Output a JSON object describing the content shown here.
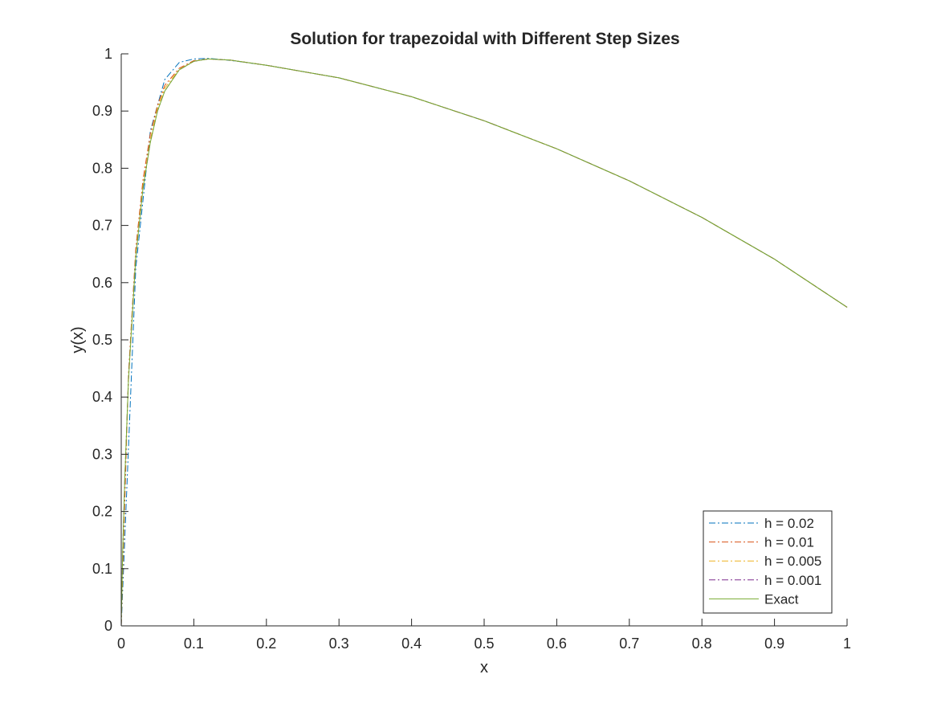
{
  "chart_data": {
    "type": "line",
    "title": "Solution for trapezoidal with Different Step Sizes",
    "xlabel": "x",
    "ylabel": "y(x)",
    "xlim": [
      0,
      1
    ],
    "ylim": [
      0,
      1
    ],
    "xticks": [
      0,
      0.1,
      0.2,
      0.3,
      0.4,
      0.5,
      0.6,
      0.7,
      0.8,
      0.9,
      1
    ],
    "xtick_labels": [
      "0",
      "0.1",
      "0.2",
      "0.3",
      "0.4",
      "0.5",
      "0.6",
      "0.7",
      "0.8",
      "0.9",
      "1"
    ],
    "yticks": [
      0,
      0.1,
      0.2,
      0.3,
      0.4,
      0.5,
      0.6,
      0.7,
      0.8,
      0.9,
      1
    ],
    "ytick_labels": [
      "0",
      "0.1",
      "0.2",
      "0.3",
      "0.4",
      "0.5",
      "0.6",
      "0.7",
      "0.8",
      "0.9",
      "1"
    ],
    "grid": false,
    "legend_position": "bottom-right",
    "series": [
      {
        "name": "h = 0.02",
        "color": "#0072BD",
        "style": "dash-dot",
        "x": [
          0,
          0.02,
          0.04,
          0.06,
          0.08,
          0.1,
          0.12,
          0.14,
          0.16,
          0.2,
          0.3,
          0.4,
          0.5,
          0.6,
          0.7,
          0.8,
          0.9,
          1.0
        ],
        "y": [
          0,
          0.625,
          0.865,
          0.955,
          0.985,
          0.991,
          0.992,
          0.99,
          0.987,
          0.98,
          0.958,
          0.925,
          0.883,
          0.834,
          0.778,
          0.714,
          0.641,
          0.557
        ]
      },
      {
        "name": "h = 0.01",
        "color": "#D95319",
        "style": "dash-dot",
        "x": [
          0,
          0.01,
          0.02,
          0.03,
          0.04,
          0.05,
          0.06,
          0.08,
          0.1,
          0.12,
          0.15,
          0.2,
          0.3,
          0.4,
          0.5,
          0.6,
          0.7,
          0.8,
          0.9,
          1.0
        ],
        "y": [
          0,
          0.44,
          0.66,
          0.78,
          0.86,
          0.91,
          0.945,
          0.975,
          0.988,
          0.991,
          0.989,
          0.98,
          0.958,
          0.925,
          0.883,
          0.834,
          0.778,
          0.714,
          0.641,
          0.557
        ]
      },
      {
        "name": "h = 0.005",
        "color": "#EDB120",
        "style": "dash-dot",
        "x": [
          0,
          0.005,
          0.01,
          0.02,
          0.03,
          0.04,
          0.05,
          0.06,
          0.08,
          0.1,
          0.12,
          0.15,
          0.2,
          0.3,
          0.4,
          0.5,
          0.6,
          0.7,
          0.8,
          0.9,
          1.0
        ],
        "y": [
          0,
          0.26,
          0.43,
          0.65,
          0.77,
          0.85,
          0.905,
          0.94,
          0.973,
          0.987,
          0.991,
          0.989,
          0.98,
          0.958,
          0.925,
          0.883,
          0.834,
          0.778,
          0.714,
          0.641,
          0.557
        ]
      },
      {
        "name": "h = 0.001",
        "color": "#7E2F8E",
        "style": "dash-dot",
        "x": [
          0,
          0.002,
          0.005,
          0.01,
          0.02,
          0.03,
          0.04,
          0.05,
          0.06,
          0.08,
          0.1,
          0.12,
          0.15,
          0.2,
          0.3,
          0.4,
          0.5,
          0.6,
          0.7,
          0.8,
          0.9,
          1.0
        ],
        "y": [
          0,
          0.13,
          0.26,
          0.43,
          0.645,
          0.765,
          0.845,
          0.9,
          0.935,
          0.972,
          0.987,
          0.991,
          0.989,
          0.98,
          0.958,
          0.925,
          0.883,
          0.834,
          0.778,
          0.714,
          0.641,
          0.557
        ]
      },
      {
        "name": "Exact",
        "color": "#77AC30",
        "style": "solid",
        "x": [
          0,
          0.002,
          0.005,
          0.01,
          0.02,
          0.03,
          0.04,
          0.05,
          0.06,
          0.08,
          0.1,
          0.12,
          0.15,
          0.2,
          0.3,
          0.4,
          0.5,
          0.6,
          0.7,
          0.8,
          0.9,
          1.0
        ],
        "y": [
          0,
          0.13,
          0.26,
          0.43,
          0.645,
          0.765,
          0.845,
          0.9,
          0.935,
          0.972,
          0.987,
          0.991,
          0.989,
          0.98,
          0.958,
          0.925,
          0.883,
          0.834,
          0.778,
          0.714,
          0.641,
          0.557
        ]
      }
    ]
  }
}
